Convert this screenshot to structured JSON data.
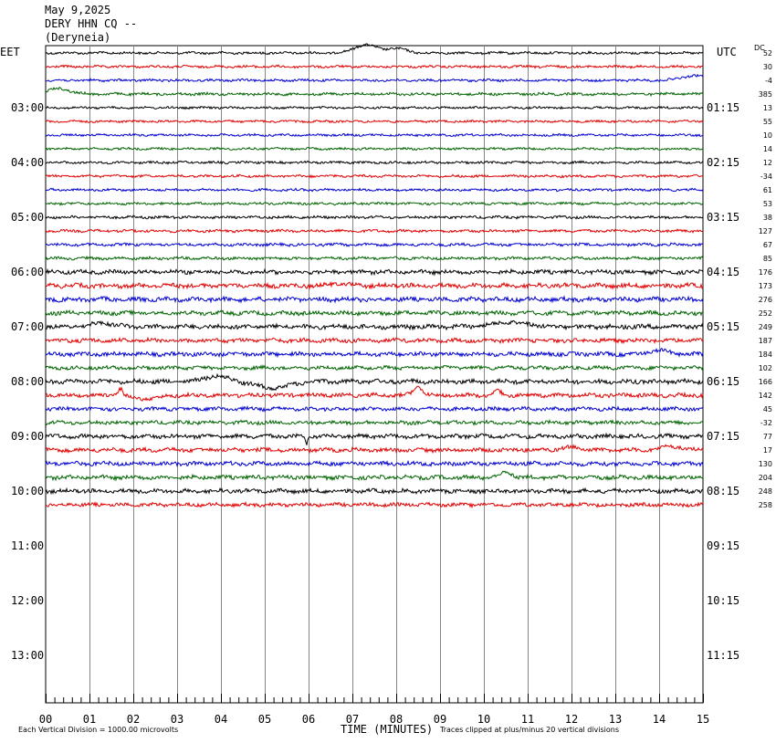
{
  "header": {
    "date": "May 9,2025",
    "station": "DERY HHN CQ --",
    "location": "(Deryneia)"
  },
  "left_axis_label": "EET",
  "right_axis_label": "UTC",
  "dc_label": "DC",
  "footer": {
    "scale_note": "Each Vertical Division = 1000.00 microvolts",
    "clip_note": "Traces clipped at plus/minus 20 vertical divisions"
  },
  "chart_data": {
    "type": "line",
    "title": "",
    "xlabel": "TIME (MINUTES)",
    "ylabel": "",
    "x_range": [
      0,
      15
    ],
    "x_ticks": [
      "00",
      "01",
      "02",
      "03",
      "04",
      "05",
      "06",
      "07",
      "08",
      "09",
      "10",
      "11",
      "12",
      "13",
      "14",
      "15"
    ],
    "grid": true,
    "left_time_labels": [
      "03:00",
      "04:00",
      "05:00",
      "06:00",
      "07:00",
      "08:00",
      "09:00",
      "10:00",
      "11:00",
      "12:00",
      "13:00"
    ],
    "right_time_labels": [
      "01:15",
      "02:15",
      "03:15",
      "04:15",
      "05:15",
      "06:15",
      "07:15",
      "08:15",
      "09:15",
      "10:15",
      "11:15"
    ],
    "trace_colors": [
      "#000000",
      "#e00000",
      "#0000d0",
      "#006400"
    ],
    "traces": [
      {
        "dc": "52",
        "amplitude": 1.2
      },
      {
        "dc": "30",
        "amplitude": 1.2
      },
      {
        "dc": "-4",
        "amplitude": 1.2
      },
      {
        "dc": "385",
        "amplitude": 1.3
      },
      {
        "dc": "13",
        "amplitude": 1.1
      },
      {
        "dc": "55",
        "amplitude": 1.1
      },
      {
        "dc": "10",
        "amplitude": 1.1
      },
      {
        "dc": "14",
        "amplitude": 1.1
      },
      {
        "dc": "12",
        "amplitude": 1.2
      },
      {
        "dc": "-34",
        "amplitude": 1.2
      },
      {
        "dc": "61",
        "amplitude": 1.2
      },
      {
        "dc": "53",
        "amplitude": 1.2
      },
      {
        "dc": "38",
        "amplitude": 1.3
      },
      {
        "dc": "127",
        "amplitude": 1.3
      },
      {
        "dc": "67",
        "amplitude": 1.4
      },
      {
        "dc": "85",
        "amplitude": 1.4
      },
      {
        "dc": "176",
        "amplitude": 2.0
      },
      {
        "dc": "173",
        "amplitude": 2.2
      },
      {
        "dc": "276",
        "amplitude": 2.2
      },
      {
        "dc": "252",
        "amplitude": 2.0
      },
      {
        "dc": "249",
        "amplitude": 2.2
      },
      {
        "dc": "187",
        "amplitude": 2.0
      },
      {
        "dc": "184",
        "amplitude": 2.0
      },
      {
        "dc": "102",
        "amplitude": 1.8
      },
      {
        "dc": "166",
        "amplitude": 2.2
      },
      {
        "dc": "142",
        "amplitude": 2.0
      },
      {
        "dc": "45",
        "amplitude": 1.8
      },
      {
        "dc": "-32",
        "amplitude": 1.8
      },
      {
        "dc": "77",
        "amplitude": 2.0
      },
      {
        "dc": "17",
        "amplitude": 2.0
      },
      {
        "dc": "130",
        "amplitude": 2.0
      },
      {
        "dc": "204",
        "amplitude": 2.0
      },
      {
        "dc": "248",
        "amplitude": 2.0
      },
      {
        "dc": "258",
        "amplitude": 1.8
      }
    ]
  }
}
